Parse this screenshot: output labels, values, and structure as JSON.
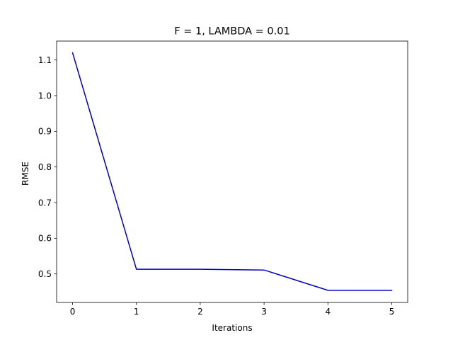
{
  "chart_data": {
    "type": "line",
    "title": "F = 1, LAMBDA = 0.01",
    "xlabel": "Iterations",
    "ylabel": "RMSE",
    "x": [
      0,
      1,
      2,
      3,
      4,
      5
    ],
    "series": [
      {
        "values": [
          1.12,
          0.513,
          0.513,
          0.511,
          0.454,
          0.454
        ],
        "color": "#0000cc"
      }
    ],
    "xlim": [
      -0.25,
      5.25
    ],
    "ylim": [
      0.42,
      1.153
    ],
    "xticks": [
      0,
      1,
      2,
      3,
      4,
      5
    ],
    "xtick_labels": [
      "0",
      "1",
      "2",
      "3",
      "4",
      "5"
    ],
    "yticks": [
      0.5,
      0.6,
      0.7,
      0.8,
      0.9,
      1.0,
      1.1
    ],
    "ytick_labels": [
      "0.5",
      "0.6",
      "0.7",
      "0.8",
      "0.9",
      "1.0",
      "1.1"
    ],
    "grid": false,
    "legend": "none"
  }
}
